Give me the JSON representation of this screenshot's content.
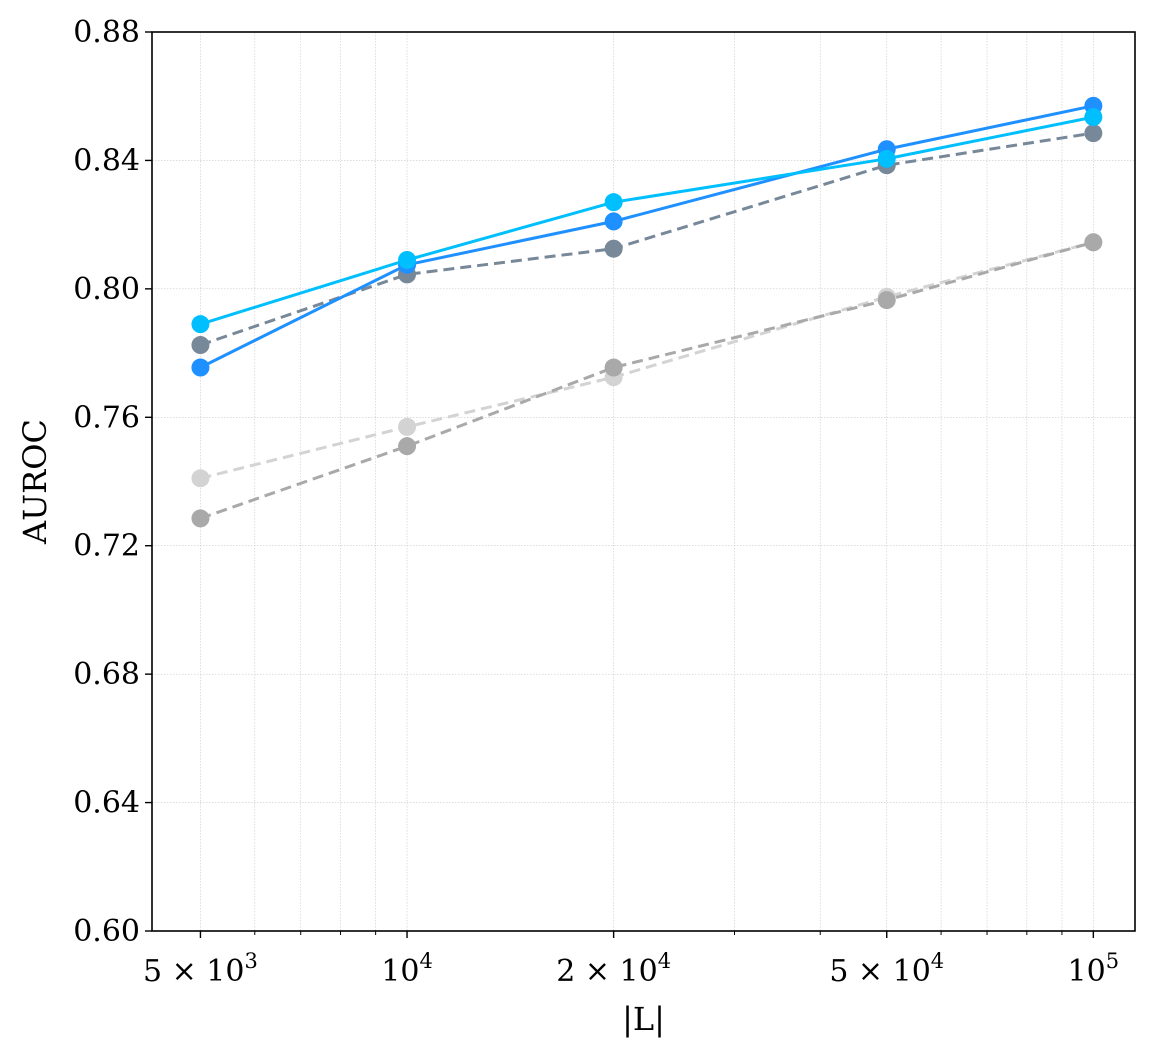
{
  "chart_data": {
    "type": "line",
    "title": "",
    "xlabel": "|L|",
    "ylabel": "AUROC",
    "xscale": "log",
    "xlim": [
      4250,
      115000
    ],
    "ylim": [
      0.6,
      0.88
    ],
    "grid": "on",
    "x": [
      5000,
      10000,
      20000,
      50000,
      100000
    ],
    "xtick_values": [
      5000,
      10000,
      20000,
      50000,
      100000
    ],
    "xtick_labels": [
      {
        "base": "5 × 10",
        "exp": "3"
      },
      {
        "base": "10",
        "exp": "4"
      },
      {
        "base": "2 × 10",
        "exp": "4"
      },
      {
        "base": "5 × 10",
        "exp": "4"
      },
      {
        "base": "10",
        "exp": "5"
      }
    ],
    "ytick_values": [
      0.6,
      0.64,
      0.68,
      0.72,
      0.76,
      0.8,
      0.84,
      0.88
    ],
    "ytick_labels": [
      "0.60",
      "0.64",
      "0.68",
      "0.72",
      "0.76",
      "0.80",
      "0.84",
      "0.88"
    ],
    "series": [
      {
        "name": "series-lightgray-dashed",
        "color": "#d3d3d3",
        "dashed": true,
        "values": [
          0.741,
          0.757,
          0.7725,
          0.7975,
          0.8145
        ]
      },
      {
        "name": "series-gray-dashed",
        "color": "#a9a9a9",
        "dashed": true,
        "values": [
          0.7285,
          0.751,
          0.7755,
          0.7965,
          0.8145
        ]
      },
      {
        "name": "series-slategray-dashed",
        "color": "#778899",
        "dashed": true,
        "values": [
          0.7825,
          0.8045,
          0.8125,
          0.8385,
          0.8485
        ]
      },
      {
        "name": "series-dodgerblue-solid",
        "color": "#1e90ff",
        "dashed": false,
        "values": [
          0.7755,
          0.8075,
          0.821,
          0.8435,
          0.857
        ]
      },
      {
        "name": "series-deepskyblue-solid",
        "color": "#00bfff",
        "dashed": false,
        "values": [
          0.789,
          0.809,
          0.827,
          0.8405,
          0.8535
        ]
      }
    ]
  }
}
